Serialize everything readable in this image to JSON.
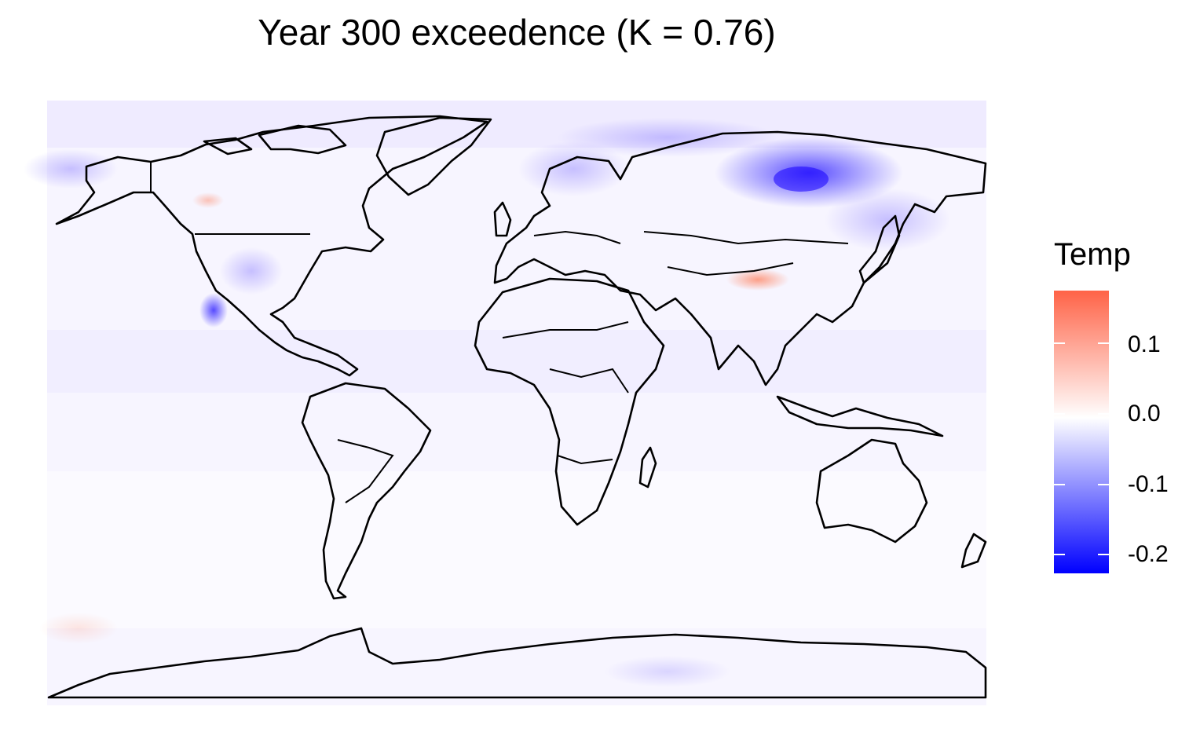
{
  "title": "Year 300 exceedence (K = 0.76)",
  "legend": {
    "title": "Temp",
    "range": [
      -0.22,
      0.18
    ],
    "ticks": [
      {
        "value": 0.1,
        "label": "0.1"
      },
      {
        "value": 0.0,
        "label": "0.0"
      },
      {
        "value": -0.1,
        "label": "-0.1"
      },
      {
        "value": -0.2,
        "label": "-0.2"
      }
    ],
    "colors": {
      "low": "#0000ff",
      "mid": "#ffffff",
      "high": "#ff6347"
    }
  },
  "map": {
    "projection": "equirectangular",
    "lon_range": [
      -180,
      180
    ],
    "lat_range": [
      -90,
      90
    ],
    "notable_anomalies": [
      {
        "region": "central Siberia",
        "value": -0.2
      },
      {
        "region": "Scandinavia",
        "value": -0.08
      },
      {
        "region": "Baja California coast",
        "value": -0.1
      },
      {
        "region": "Tibetan Plateau",
        "value": 0.08
      },
      {
        "region": "western Canada",
        "value": 0.04
      }
    ]
  }
}
